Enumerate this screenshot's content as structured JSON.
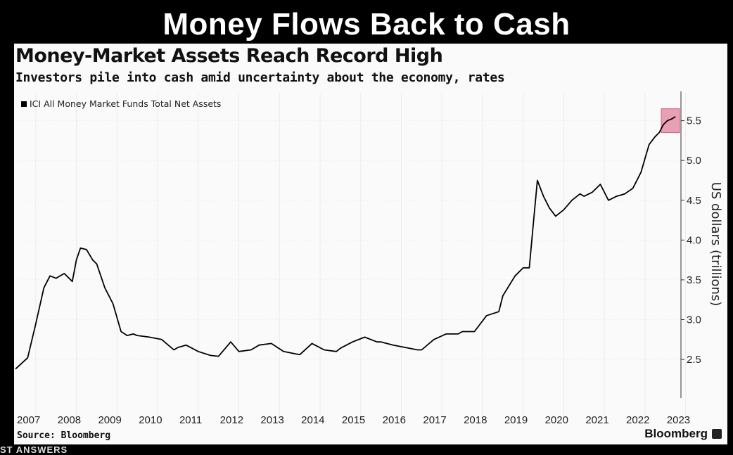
{
  "headline": "Money Flows Back to Cash",
  "watermark": "ST ANSWERS",
  "chart_data": {
    "type": "line",
    "title": "Money-Market Assets Reach Record High",
    "subtitle": "Investors pile into cash amid uncertainty about the economy, rates",
    "xlabel": "",
    "ylabel": "US dollars (trillions)",
    "xlim": [
      2007.0,
      2023.35
    ],
    "ylim": [
      2.05,
      5.85
    ],
    "y_ticks": [
      2.5,
      3.0,
      3.5,
      4.0,
      4.5,
      5.0,
      5.5
    ],
    "y_tick_labels": [
      "2.5",
      "3.0",
      "3.5",
      "4.0",
      "4.5",
      "5.0",
      "5.5"
    ],
    "x_ticks": [
      2007,
      2008,
      2009,
      2010,
      2011,
      2012,
      2013,
      2014,
      2015,
      2016,
      2017,
      2018,
      2019,
      2020,
      2021,
      2022,
      2023
    ],
    "x_tick_labels": [
      "2007",
      "2008",
      "2009",
      "2010",
      "2011",
      "2012",
      "2013",
      "2014",
      "2015",
      "2016",
      "2017",
      "2018",
      "2019",
      "2020",
      "2021",
      "2022",
      "2023"
    ],
    "y_axis_position": "right",
    "grid": true,
    "legend_position": "top-left",
    "highlight": {
      "x_range": [
        2022.9,
        2023.35
      ],
      "y_range": [
        5.35,
        5.65
      ],
      "color": "#e8a0b4"
    },
    "series": [
      {
        "name": "ICI All Money Market Funds Total Net Assets",
        "color": "#000000",
        "x": [
          2007.0,
          2007.3,
          2007.5,
          2007.7,
          2007.85,
          2008.0,
          2008.2,
          2008.4,
          2008.5,
          2008.6,
          2008.75,
          2008.9,
          2009.0,
          2009.2,
          2009.4,
          2009.6,
          2009.75,
          2009.9,
          2010.0,
          2010.3,
          2010.6,
          2010.9,
          2011.0,
          2011.2,
          2011.5,
          2011.8,
          2012.0,
          2012.3,
          2012.5,
          2012.8,
          2013.0,
          2013.3,
          2013.6,
          2013.9,
          2014.0,
          2014.3,
          2014.6,
          2014.9,
          2015.0,
          2015.3,
          2015.6,
          2015.9,
          2016.0,
          2016.3,
          2016.6,
          2016.9,
          2017.0,
          2017.3,
          2017.6,
          2017.9,
          2018.0,
          2018.3,
          2018.6,
          2018.9,
          2019.0,
          2019.3,
          2019.5,
          2019.65,
          2019.75,
          2019.85,
          2020.0,
          2020.15,
          2020.3,
          2020.5,
          2020.7,
          2020.9,
          2021.0,
          2021.2,
          2021.4,
          2021.6,
          2021.8,
          2022.0,
          2022.2,
          2022.4,
          2022.6,
          2022.75,
          2022.85,
          2022.95,
          2023.05,
          2023.15,
          2023.25
        ],
        "values": [
          2.38,
          2.52,
          2.95,
          3.4,
          3.55,
          3.52,
          3.58,
          3.48,
          3.75,
          3.9,
          3.88,
          3.75,
          3.7,
          3.4,
          3.2,
          2.85,
          2.8,
          2.82,
          2.8,
          2.78,
          2.75,
          2.62,
          2.65,
          2.68,
          2.6,
          2.55,
          2.54,
          2.72,
          2.6,
          2.62,
          2.68,
          2.7,
          2.6,
          2.57,
          2.56,
          2.7,
          2.62,
          2.6,
          2.64,
          2.72,
          2.78,
          2.72,
          2.72,
          2.68,
          2.65,
          2.62,
          2.62,
          2.75,
          2.82,
          2.82,
          2.85,
          2.85,
          3.05,
          3.1,
          3.3,
          3.55,
          3.65,
          3.65,
          4.2,
          4.75,
          4.55,
          4.4,
          4.3,
          4.38,
          4.5,
          4.58,
          4.55,
          4.6,
          4.7,
          4.5,
          4.55,
          4.58,
          4.65,
          4.85,
          5.2,
          5.3,
          5.35,
          5.45,
          5.5,
          5.52,
          5.55
        ]
      }
    ]
  },
  "source": "Source: Bloomberg",
  "brand": "Bloomberg"
}
